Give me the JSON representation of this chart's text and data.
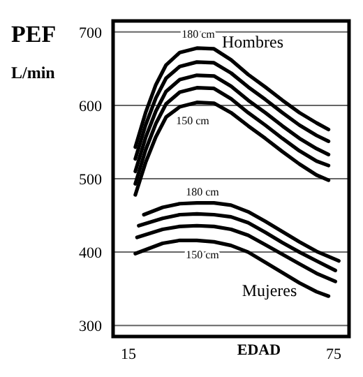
{
  "chart_data": {
    "type": "line",
    "ylabel": "PEF L/min",
    "xlabel": "EDAD",
    "xlim": [
      10.5,
      79.5
    ],
    "xticks": [
      15,
      75
    ],
    "ylim": [
      285,
      715
    ],
    "yticks": [
      300,
      400,
      500,
      600,
      700
    ],
    "grid": "y",
    "marker": "none",
    "line_style": "solid",
    "series": [
      {
        "color": "#000000",
        "x": [
          17,
          20,
          23,
          26,
          30,
          35,
          40,
          45,
          50,
          55,
          60,
          65,
          70,
          73.5
        ],
        "values": [
          543,
          590,
          628,
          655,
          672,
          678,
          677,
          662,
          642,
          625,
          607,
          590,
          576,
          567
        ]
      },
      {
        "color": "#000000",
        "x": [
          17,
          20,
          23,
          26,
          30,
          35,
          40,
          45,
          50,
          55,
          60,
          65,
          70,
          73.5
        ],
        "values": [
          527,
          573,
          610,
          637,
          653,
          659,
          658,
          644,
          625,
          608,
          590,
          573,
          559,
          551
        ]
      },
      {
        "color": "#000000",
        "x": [
          17,
          20,
          23,
          26,
          30,
          35,
          40,
          45,
          50,
          55,
          60,
          65,
          70,
          73.5
        ],
        "values": [
          510,
          556,
          592,
          619,
          635,
          641,
          640,
          626,
          607,
          590,
          572,
          555,
          541,
          533
        ]
      },
      {
        "color": "#000000",
        "x": [
          17,
          20,
          23,
          26,
          30,
          35,
          40,
          45,
          50,
          55,
          60,
          65,
          70,
          73.5
        ],
        "values": [
          493,
          539,
          575,
          602,
          618,
          624,
          623,
          609,
          590,
          573,
          555,
          538,
          524,
          518
        ]
      },
      {
        "color": "#000000",
        "x": [
          17,
          20,
          23,
          26,
          30,
          35,
          40,
          45,
          50,
          55,
          60,
          65,
          70,
          73.5
        ],
        "values": [
          478,
          522,
          557,
          584,
          598,
          604,
          603,
          590,
          572,
          555,
          537,
          520,
          505,
          498
        ]
      },
      {
        "color": "#000000",
        "x": [
          19.5,
          25,
          30,
          35,
          40,
          45,
          50,
          55,
          60,
          65,
          70,
          76.5
        ],
        "values": [
          451,
          461,
          466,
          467,
          467,
          464,
          455,
          442,
          428,
          414,
          401,
          388
        ]
      },
      {
        "color": "#000000",
        "x": [
          18,
          25,
          30,
          35,
          40,
          45,
          50,
          55,
          60,
          65,
          70,
          75.5
        ],
        "values": [
          436,
          446,
          451,
          452,
          451,
          448,
          440,
          427,
          413,
          400,
          388,
          375
        ]
      },
      {
        "color": "#000000",
        "x": [
          17.5,
          25,
          30,
          35,
          40,
          45,
          50,
          55,
          60,
          65,
          70,
          75.5
        ],
        "values": [
          420,
          431,
          435,
          436,
          435,
          431,
          423,
          410,
          397,
          384,
          371,
          360
        ]
      },
      {
        "color": "#000000",
        "x": [
          17,
          25,
          30,
          35,
          40,
          45,
          50,
          55,
          60,
          65,
          70,
          73.5
        ],
        "values": [
          398,
          412,
          416,
          416,
          414,
          409,
          400,
          386,
          372,
          358,
          346,
          340
        ]
      }
    ],
    "annotations": [
      "180 cm",
      "Hombres",
      "150 cm",
      "180 cm",
      "150 cm",
      "Mujeres"
    ]
  }
}
